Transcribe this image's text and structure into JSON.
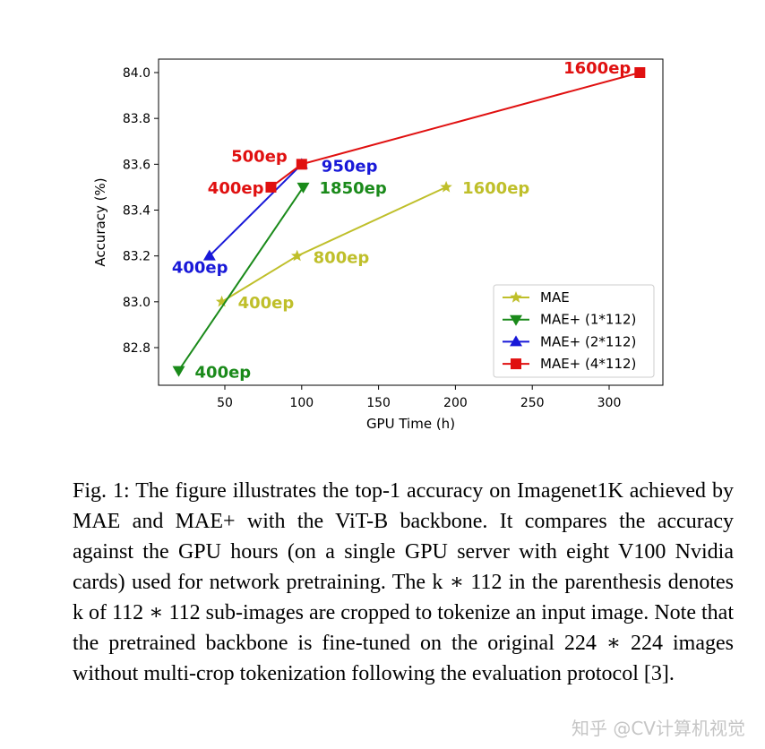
{
  "chart_data": {
    "type": "line",
    "xlabel": "GPU Time (h)",
    "ylabel": "Accuracy (%)",
    "xlim": [
      5,
      335
    ],
    "ylim": [
      82.63,
      84.0
    ],
    "xticks": [
      50,
      100,
      150,
      200,
      250,
      300
    ],
    "yticks": [
      82.8,
      83.0,
      83.2,
      83.4,
      83.6,
      83.8,
      84.0
    ],
    "legend_position": "lower-right",
    "series": [
      {
        "name": "MAE",
        "color": "#bfbf2a",
        "marker": "star",
        "points": [
          {
            "x": 48,
            "y": 83.0,
            "label": "400ep"
          },
          {
            "x": 97,
            "y": 83.2,
            "label": "800ep"
          },
          {
            "x": 194,
            "y": 83.5,
            "label": "1600ep"
          }
        ]
      },
      {
        "name": "MAE+ (1*112)",
        "color": "#1a8a1a",
        "marker": "triangle-down",
        "points": [
          {
            "x": 20,
            "y": 82.7,
            "label": "400ep"
          },
          {
            "x": 101,
            "y": 83.5,
            "label": "1850ep"
          }
        ]
      },
      {
        "name": "MAE+ (2*112)",
        "color": "#1818d8",
        "marker": "triangle-up",
        "points": [
          {
            "x": 40,
            "y": 83.2,
            "label": "400ep"
          },
          {
            "x": 100,
            "y": 83.6,
            "label": "950ep"
          }
        ]
      },
      {
        "name": "MAE+ (4*112)",
        "color": "#e01010",
        "marker": "square",
        "points": [
          {
            "x": 80,
            "y": 83.5,
            "label": "400ep"
          },
          {
            "x": 100,
            "y": 83.6,
            "label": "500ep"
          },
          {
            "x": 320,
            "y": 84.0,
            "label": "1600ep"
          }
        ]
      }
    ]
  },
  "caption": "Fig. 1: The figure illustrates the top-1 accuracy on Imagenet1K achieved by MAE and MAE+ with the ViT-B backbone. It compares the accuracy against the GPU hours (on a single GPU server with eight V100 Nvidia cards) used for network pretraining. The k ∗ 112 in the parenthesis denotes k of 112 ∗ 112 sub-images are cropped to tokenize an input image. Note that the pretrained backbone is fine-tuned on the original 224 ∗ 224 images without multi-crop tokenization following the evaluation protocol [3].",
  "watermark": "知乎 @CV计算机视觉"
}
